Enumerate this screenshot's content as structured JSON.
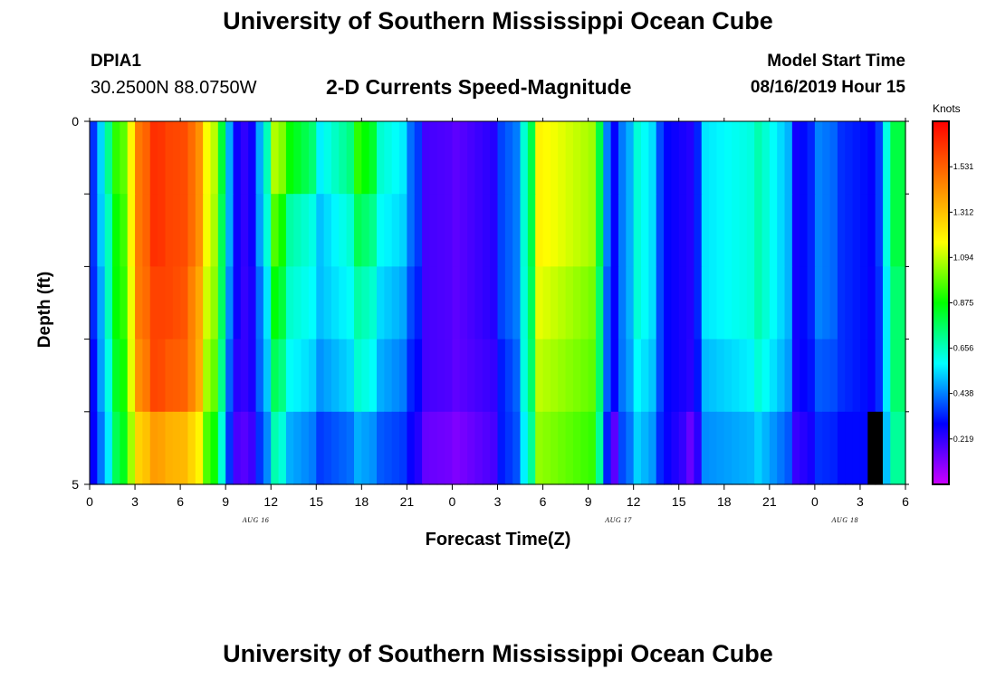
{
  "header": {
    "title": "University of Southern Mississippi Ocean Cube",
    "station_id": "DPIA1",
    "coordinates": "30.2500N 88.0750W",
    "subtitle": "2-D Currents Speed-Magnitude",
    "model_label": "Model Start Time",
    "model_time": "08/16/2019 Hour 15"
  },
  "footer": {
    "title": "University of Southern Mississippi Ocean Cube"
  },
  "chart_data": {
    "type": "heatmap",
    "title": "2-D Currents Speed-Magnitude",
    "xlabel": "Forecast Time(Z)",
    "ylabel": "Depth (ft)",
    "colorbar_label": "Knots",
    "colorbar_ticks": [
      "1.531",
      "1.312",
      "1.094",
      "0.875",
      "0.656",
      "0.438",
      "0.219"
    ],
    "colorbar_range": [
      0.0,
      1.75
    ],
    "colors": [
      "#cc00ff",
      "#0000ff",
      "#00ffff",
      "#00ff00",
      "#ffff00",
      "#ff8000",
      "#ff0000"
    ],
    "x_tick_labels": [
      "0",
      "3",
      "6",
      "9",
      "12",
      "15",
      "18",
      "21",
      "0",
      "3",
      "6",
      "9",
      "12",
      "15",
      "18",
      "21",
      "0",
      "3",
      "6"
    ],
    "date_labels": [
      {
        "label": "AUG 16",
        "hour": 11
      },
      {
        "label": "AUG 17",
        "hour": 35
      },
      {
        "label": "AUG 18",
        "hour": 50
      }
    ],
    "x_range_hours": [
      0,
      54
    ],
    "y_tick_labels": [
      "0",
      "5"
    ],
    "depth_range_ft": [
      0,
      5
    ],
    "depth_layers": 5,
    "hours_per_column": 0.5,
    "layer_boundaries_hours": [
      [
        0,
        0.5,
        1.0,
        1.5,
        2.5,
        3.0,
        4.0,
        5.0,
        6.5,
        7.5,
        8.5,
        9.0,
        9.5,
        10.0,
        11.0,
        12.0,
        13.0,
        15.0,
        17.5,
        19.0,
        21.0,
        22.0,
        24.0,
        27.0,
        28.5,
        29.5,
        33.5,
        34.0,
        34.5,
        35.0,
        36.0,
        37.5,
        38.0,
        39.5,
        40.5,
        44.0,
        46.5,
        48.0,
        49.5,
        51.5,
        52.5,
        53.0,
        54.0
      ],
      [
        0,
        0.5,
        1.0,
        1.5,
        2.5,
        3.0,
        4.0,
        5.0,
        6.5,
        7.5,
        8.5,
        9.0,
        9.5,
        10.0,
        11.0,
        12.0,
        13.0,
        15.0,
        17.5,
        19.0,
        21.0,
        22.0,
        24.0,
        27.0,
        28.5,
        29.5,
        33.5,
        34.0,
        34.5,
        35.0,
        36.0,
        37.5,
        38.0,
        39.5,
        40.5,
        44.0,
        46.5,
        48.0,
        49.5,
        51.5,
        52.5,
        53.0,
        54.0
      ],
      [
        0,
        0.5,
        1.0,
        1.5,
        2.5,
        3.0,
        4.0,
        5.0,
        6.5,
        7.5,
        8.5,
        9.0,
        9.5,
        10.0,
        11.0,
        12.0,
        13.0,
        15.0,
        17.5,
        19.0,
        21.0,
        22.0,
        24.0,
        27.0,
        28.5,
        29.5,
        33.5,
        34.0,
        34.5,
        35.0,
        36.0,
        37.5,
        38.0,
        39.5,
        40.5,
        44.0,
        46.5,
        48.0,
        49.5,
        51.5,
        52.5,
        53.0,
        54.0
      ],
      [
        0,
        0.5,
        1.0,
        1.5,
        2.5,
        3.0,
        4.0,
        5.0,
        6.5,
        7.5,
        8.5,
        9.0,
        9.5,
        10.0,
        11.0,
        12.0,
        13.0,
        15.0,
        17.5,
        19.0,
        21.0,
        22.0,
        24.0,
        27.0,
        28.5,
        29.5,
        33.5,
        34.0,
        34.5,
        35.0,
        36.0,
        37.5,
        38.0,
        39.5,
        40.5,
        44.0,
        46.5,
        48.0,
        49.5,
        51.5,
        52.5,
        53.0,
        54.0
      ],
      [
        0,
        0.5,
        1.0,
        1.5,
        2.5,
        3.0,
        4.0,
        5.0,
        6.5,
        7.5,
        8.5,
        9.0,
        9.5,
        10.0,
        11.0,
        12.0,
        13.0,
        15.0,
        17.5,
        19.0,
        21.0,
        22.0,
        24.0,
        27.0,
        28.5,
        29.5,
        33.5,
        34.0,
        34.5,
        35.0,
        36.0,
        37.5,
        38.0,
        39.5,
        40.5,
        44.0,
        46.5,
        48.0,
        49.5,
        51.5,
        52.5,
        53.0,
        54.0
      ]
    ],
    "layer_speeds_knots": [
      [
        0.3,
        0.5,
        0.65,
        0.9,
        1.1,
        1.45,
        1.65,
        1.6,
        1.55,
        1.2,
        0.9,
        0.55,
        0.3,
        0.2,
        0.4,
        1.1,
        0.9,
        0.55,
        0.95,
        0.65,
        0.45,
        0.2,
        0.15,
        0.35,
        0.55,
        1.2,
        0.9,
        0.5,
        0.25,
        0.4,
        0.65,
        0.4,
        0.3,
        0.2,
        0.55,
        0.7,
        0.25,
        0.45,
        0.35,
        0.25,
        0.55,
        0.8
      ],
      [
        0.3,
        0.5,
        0.6,
        0.85,
        1.1,
        1.45,
        1.65,
        1.6,
        1.55,
        1.2,
        0.85,
        0.55,
        0.3,
        0.2,
        0.4,
        1.0,
        0.7,
        0.5,
        0.8,
        0.6,
        0.45,
        0.2,
        0.15,
        0.35,
        0.55,
        1.2,
        0.9,
        0.5,
        0.25,
        0.4,
        0.65,
        0.4,
        0.3,
        0.2,
        0.55,
        0.7,
        0.25,
        0.45,
        0.35,
        0.25,
        0.55,
        0.8
      ],
      [
        0.3,
        0.45,
        0.6,
        0.85,
        1.05,
        1.45,
        1.6,
        1.6,
        1.5,
        1.15,
        0.85,
        0.5,
        0.3,
        0.2,
        0.35,
        0.9,
        0.65,
        0.5,
        0.7,
        0.55,
        0.4,
        0.2,
        0.15,
        0.35,
        0.55,
        1.15,
        0.85,
        0.45,
        0.25,
        0.4,
        0.65,
        0.4,
        0.3,
        0.2,
        0.55,
        0.7,
        0.25,
        0.45,
        0.35,
        0.25,
        0.5,
        0.75
      ],
      [
        0.25,
        0.45,
        0.55,
        0.8,
        1.05,
        1.4,
        1.6,
        1.55,
        1.5,
        1.1,
        0.8,
        0.45,
        0.25,
        0.2,
        0.35,
        0.8,
        0.6,
        0.45,
        0.65,
        0.5,
        0.35,
        0.2,
        0.15,
        0.3,
        0.55,
        1.1,
        0.85,
        0.45,
        0.25,
        0.4,
        0.6,
        0.4,
        0.3,
        0.2,
        0.5,
        0.65,
        0.25,
        0.4,
        0.35,
        0.25,
        0.5,
        0.75
      ],
      [
        0.25,
        0.4,
        0.5,
        0.75,
        1.0,
        1.25,
        1.4,
        1.35,
        1.3,
        1.0,
        0.7,
        0.4,
        0.2,
        0.15,
        0.3,
        0.7,
        0.5,
        0.35,
        0.5,
        0.4,
        0.3,
        0.15,
        0.1,
        0.3,
        0.5,
        1.05,
        0.8,
        0.4,
        0.1,
        0.35,
        0.55,
        0.35,
        0.3,
        0.1,
        0.45,
        0.55,
        0.2,
        0.35,
        0.3,
        0.0,
        0.45,
        0.7
      ]
    ],
    "grid": false,
    "legend": "colorbar-right"
  }
}
